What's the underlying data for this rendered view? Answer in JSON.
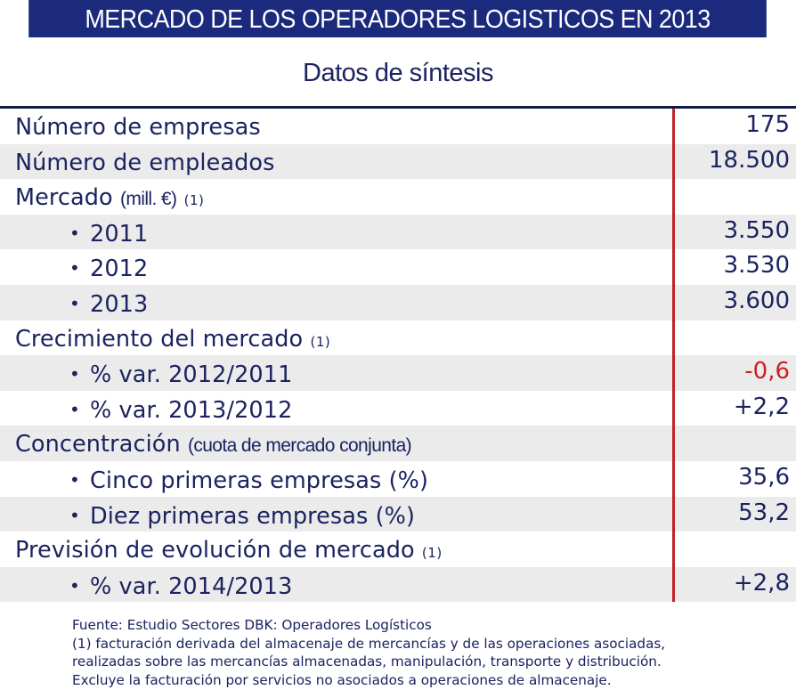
{
  "header": {
    "title": "MERCADO DE LOS OPERADORES LOGISTICOS EN 2013",
    "subtitle": "Datos de síntesis"
  },
  "colors": {
    "title_bg": "#1b2a7c",
    "text": "#1b2360",
    "negative": "#cc1f22",
    "divider": "#c4212b",
    "row_alt": "#ebebeb"
  },
  "rows": [
    {
      "label": "Número de empresas",
      "value": "175"
    },
    {
      "label": "Número de empleados",
      "value": "18.500"
    },
    {
      "label": "Mercado",
      "note": "(mill. €)",
      "footnote_mark": "(1)",
      "value": ""
    },
    {
      "bullet": "•",
      "label": "2011",
      "value": "3.550"
    },
    {
      "bullet": "•",
      "label": "2012",
      "value": "3.530"
    },
    {
      "bullet": "•",
      "label": "2013",
      "value": "3.600"
    },
    {
      "label": "Crecimiento del mercado",
      "footnote_mark": "(1)",
      "value": ""
    },
    {
      "bullet": "•",
      "label": "% var. 2012/2011",
      "value": "-0,6"
    },
    {
      "bullet": "•",
      "label": "% var. 2013/2012",
      "value": "+2,2"
    },
    {
      "label": "Concentración",
      "note": "(cuota de mercado conjunta)",
      "value": ""
    },
    {
      "bullet": "•",
      "label": "Cinco primeras empresas (%)",
      "value": "35,6"
    },
    {
      "bullet": "•",
      "label": "Diez primeras empresas (%)",
      "value": "53,2"
    },
    {
      "label": "Previsión de evolución de mercado",
      "footnote_mark": "(1)",
      "value": ""
    },
    {
      "bullet": "•",
      "label": "% var. 2014/2013",
      "value": "+2,8"
    }
  ],
  "footnotes": [
    "Fuente: Estudio Sectores DBK: Operadores Logísticos",
    "(1) facturación derivada del almacenaje de mercancías y de las operaciones asociadas,",
    "realizadas sobre las mercancías almacenadas, manipulación, transporte y distribución.",
    "Excluye la facturación por servicios no asociados a operaciones de almacenaje."
  ]
}
